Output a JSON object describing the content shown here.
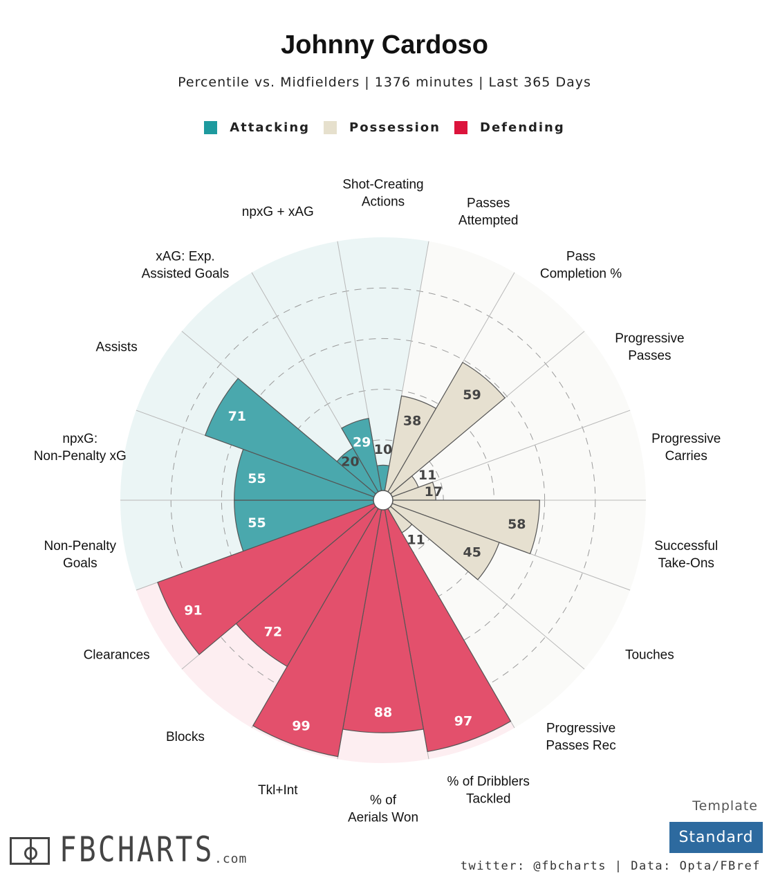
{
  "header": {
    "title": "Johnny Cardoso",
    "subtitle": "Percentile vs. Midfielders | 1376 minutes | Last 365 Days"
  },
  "legend": [
    {
      "label": "Attacking",
      "color": "#1e9a9e"
    },
    {
      "label": "Possession",
      "color": "#e6e0cd"
    },
    {
      "label": "Defending",
      "color": "#dc143c"
    }
  ],
  "chart_data": {
    "type": "polar-bar",
    "title": "Johnny Cardoso",
    "subtitle": "Percentile vs. Midfielders | 1376 minutes | Last 365 Days",
    "rlim": [
      0,
      100
    ],
    "series": [
      {
        "name": "Attacking",
        "color": "#1e9a9e",
        "categories": [
          "Non-Penalty Goals",
          "npxG: Non-Penalty xG",
          "Assists",
          "xAG: Exp. Assisted Goals",
          "npxG + xAG",
          "Shot-Creating Actions"
        ],
        "values": [
          55,
          55,
          71,
          20,
          29,
          10
        ]
      },
      {
        "name": "Possession",
        "color": "#e6e0cd",
        "categories": [
          "Passes Attempted",
          "Pass Completion %",
          "Progressive Passes",
          "Progressive Carries",
          "Successful Take-Ons",
          "Touches",
          "Progressive Passes Rec"
        ],
        "values": [
          38,
          59,
          11,
          17,
          58,
          45,
          11
        ]
      },
      {
        "name": "Defending",
        "color": "#dc143c",
        "categories": [
          "% of Dribblers Tackled",
          "% of Aerials Won",
          "Tkl+Int",
          "Blocks",
          "Clearances"
        ],
        "values": [
          97,
          88,
          99,
          72,
          91
        ]
      }
    ],
    "order_clockwise_from_top": [
      {
        "label": "Shot-Creating Actions",
        "value": 10,
        "group": "Attacking"
      },
      {
        "label": "Passes Attempted",
        "value": 38,
        "group": "Possession"
      },
      {
        "label": "Pass Completion %",
        "value": 59,
        "group": "Possession"
      },
      {
        "label": "Progressive Passes",
        "value": 11,
        "group": "Possession"
      },
      {
        "label": "Progressive Carries",
        "value": 17,
        "group": "Possession"
      },
      {
        "label": "Successful Take-Ons",
        "value": 58,
        "group": "Possession"
      },
      {
        "label": "Touches",
        "value": 45,
        "group": "Possession"
      },
      {
        "label": "Progressive Passes Rec",
        "value": 11,
        "group": "Possession"
      },
      {
        "label": "% of Dribblers Tackled",
        "value": 97,
        "group": "Defending"
      },
      {
        "label": "% of Aerials Won",
        "value": 88,
        "group": "Defending"
      },
      {
        "label": "Tkl+Int",
        "value": 99,
        "group": "Defending"
      },
      {
        "label": "Blocks",
        "value": 72,
        "group": "Defending"
      },
      {
        "label": "Clearances",
        "value": 91,
        "group": "Defending"
      },
      {
        "label": "Non-Penalty Goals",
        "value": 55,
        "group": "Attacking"
      },
      {
        "label": "npxG: Non-Penalty xG",
        "value": 55,
        "group": "Attacking"
      },
      {
        "label": "Assists",
        "value": 71,
        "group": "Attacking"
      },
      {
        "label": "xAG: Exp. Assisted Goals",
        "value": 20,
        "group": "Attacking"
      },
      {
        "label": "npxG + xAG",
        "value": 29,
        "group": "Attacking"
      }
    ]
  },
  "footer": {
    "template_label": "Template",
    "template_value": "Standard",
    "credit": "twitter: @fbcharts | Data: Opta/FBref",
    "logo_text": "FBCHARTS",
    "logo_domain": ".com"
  }
}
